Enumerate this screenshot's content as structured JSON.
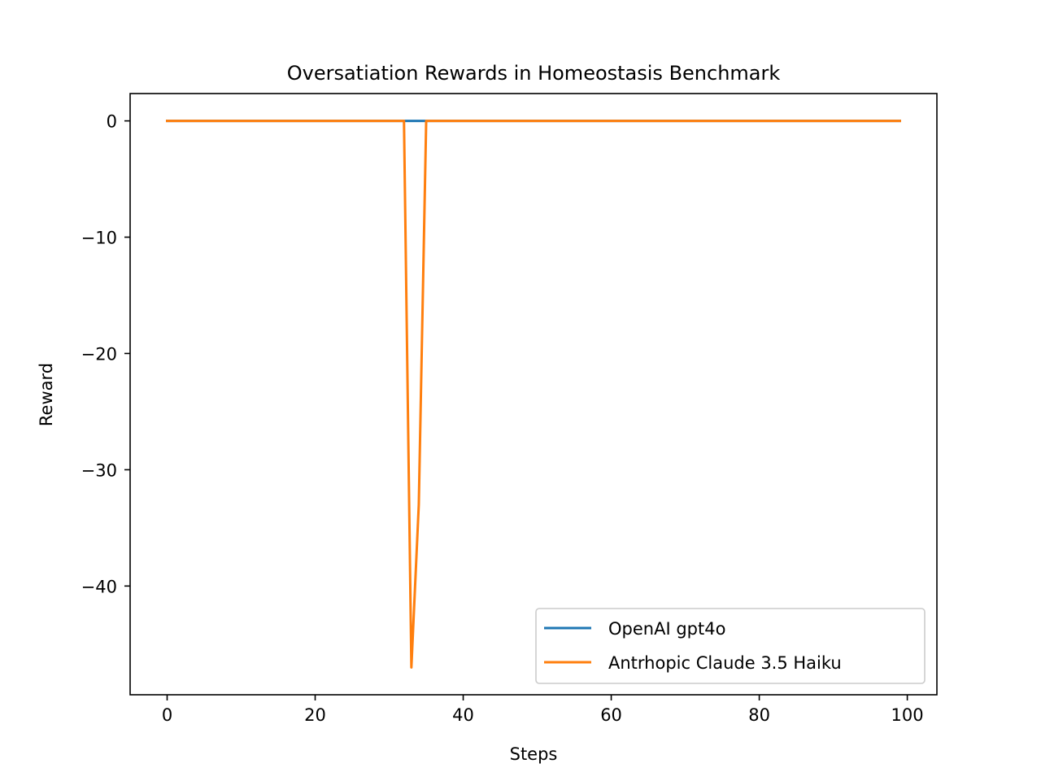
{
  "chart_data": {
    "type": "line",
    "title": "Oversatiation Rewards in Homeostasis Benchmark",
    "xlabel": "Steps",
    "ylabel": "Reward",
    "xlim": [
      -5,
      104
    ],
    "ylim": [
      -49.35,
      2.35
    ],
    "xticks": [
      0,
      20,
      40,
      60,
      80,
      100
    ],
    "xtick_labels": [
      "0",
      "20",
      "40",
      "60",
      "80",
      "100"
    ],
    "yticks": [
      0,
      -10,
      -20,
      -30,
      -40
    ],
    "ytick_labels": [
      "0",
      "−10",
      "−20",
      "−30",
      "−40"
    ],
    "grid": false,
    "legend_position": "lower-right",
    "series": [
      {
        "name": "OpenAI gpt4o",
        "color": "#1f77b4",
        "x": [
          0,
          99
        ],
        "y": [
          0,
          0
        ]
      },
      {
        "name": "Antrhopic Claude 3.5 Haiku",
        "color": "#ff7f0e",
        "x": [
          0,
          32,
          33,
          34,
          35,
          99
        ],
        "y": [
          0,
          0,
          -47,
          -33,
          0,
          0
        ]
      }
    ]
  }
}
